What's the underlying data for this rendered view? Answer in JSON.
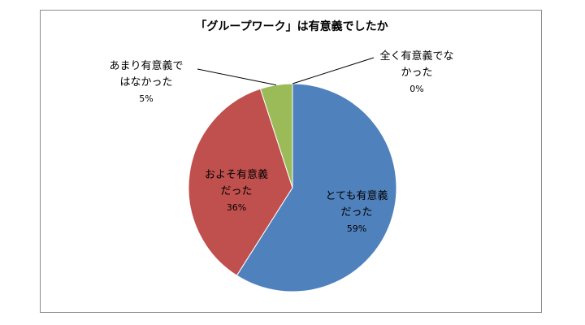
{
  "chart_data": {
    "type": "pie",
    "title": "「グループワーク」は有意義でしたか",
    "slices": [
      {
        "line1": "とても有意義",
        "line2": "だった",
        "value": 59,
        "pct_label": "59%",
        "color": "#4F81BD"
      },
      {
        "line1": "およそ有意義",
        "line2": "だった",
        "value": 36,
        "pct_label": "36%",
        "color": "#C0504D"
      },
      {
        "line1": "あまり有意義で",
        "line2": "はなかった",
        "value": 5,
        "pct_label": "5%",
        "color": "#9BBB59"
      },
      {
        "line1": "全く有意義でな",
        "line2": "かった",
        "value": 0,
        "pct_label": "0%",
        "color": "#8064A2"
      }
    ],
    "legend": "none"
  }
}
